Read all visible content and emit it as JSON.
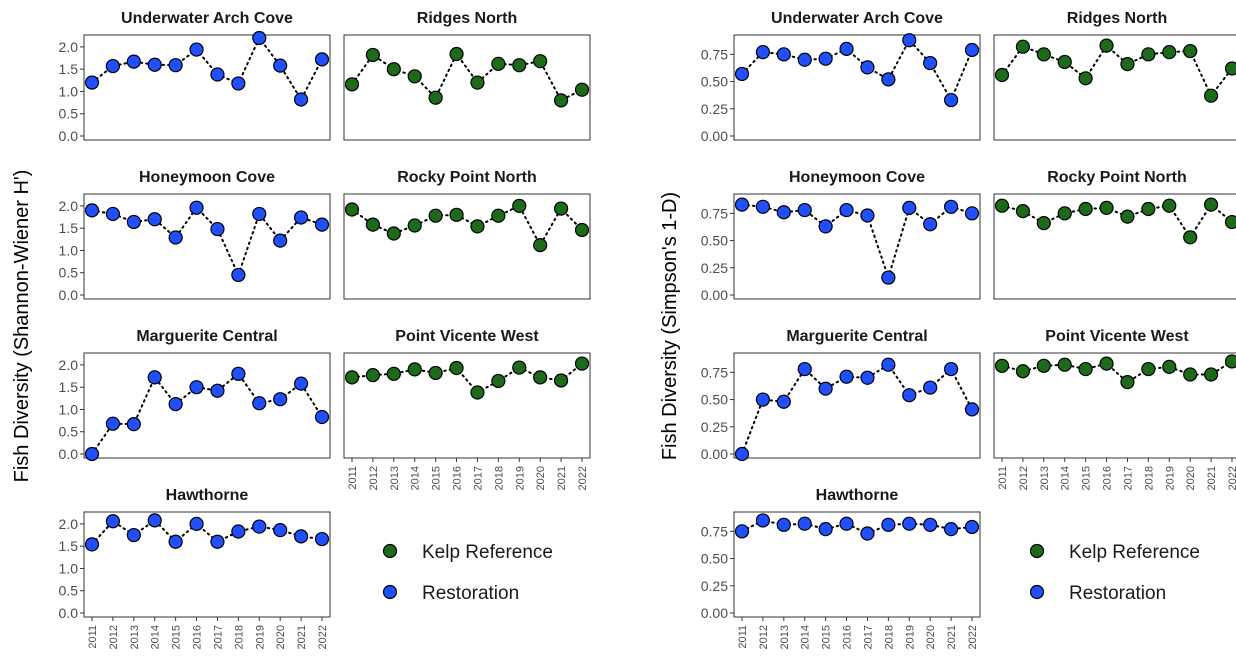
{
  "chart_data": [
    {
      "type": "scatter",
      "ylabel": "Fish Diversity (Shannon-Wiener H')",
      "ylim": [
        0,
        2.2
      ],
      "yticks": [
        "0.0",
        "0.5",
        "1.0",
        "1.5",
        "2.0"
      ],
      "ytick_values": [
        0,
        0.5,
        1.0,
        1.5,
        2.0
      ],
      "x": [
        "2011",
        "2012",
        "2013",
        "2014",
        "2015",
        "2016",
        "2017",
        "2018",
        "2019",
        "2020",
        "2021",
        "2022"
      ],
      "legend": [
        {
          "name": "Kelp Reference",
          "color": "#1b6b1b"
        },
        {
          "name": "Restoration",
          "color": "#1f4fff"
        }
      ],
      "panels": [
        {
          "title": "Underwater Arch Cove",
          "group": "Restoration",
          "values": [
            1.2,
            1.57,
            1.67,
            1.6,
            1.59,
            1.94,
            1.38,
            1.18,
            2.2,
            1.58,
            0.82,
            1.72
          ]
        },
        {
          "title": "Ridges North",
          "group": "Kelp Reference",
          "values": [
            1.16,
            1.82,
            1.5,
            1.34,
            0.86,
            1.84,
            1.2,
            1.62,
            1.59,
            1.68,
            0.8,
            1.04
          ]
        },
        {
          "title": "Honeymoon Cove",
          "group": "Restoration",
          "values": [
            1.9,
            1.82,
            1.64,
            1.7,
            1.29,
            1.96,
            1.48,
            0.45,
            1.82,
            1.22,
            1.74,
            1.58
          ]
        },
        {
          "title": "Rocky Point North",
          "group": "Kelp Reference",
          "values": [
            1.92,
            1.58,
            1.38,
            1.56,
            1.78,
            1.8,
            1.54,
            1.78,
            2.0,
            1.12,
            1.94,
            1.46
          ]
        },
        {
          "title": "Marguerite Central",
          "group": "Restoration",
          "values": [
            0.0,
            0.68,
            0.67,
            1.72,
            1.12,
            1.5,
            1.42,
            1.8,
            1.14,
            1.23,
            1.58,
            0.83
          ]
        },
        {
          "title": "Point Vicente West",
          "group": "Kelp Reference",
          "values": [
            1.72,
            1.77,
            1.8,
            1.9,
            1.82,
            1.93,
            1.38,
            1.64,
            1.94,
            1.72,
            1.65,
            2.03
          ]
        },
        {
          "title": "Hawthorne",
          "group": "Restoration",
          "values": [
            1.54,
            2.06,
            1.75,
            2.08,
            1.6,
            2.0,
            1.6,
            1.83,
            1.94,
            1.86,
            1.72,
            1.66
          ]
        }
      ]
    },
    {
      "type": "scatter",
      "ylabel": "Fish Diversity (Simpson's 1-D)",
      "ylim": [
        0,
        0.9
      ],
      "yticks": [
        "0.00",
        "0.25",
        "0.50",
        "0.75"
      ],
      "ytick_values": [
        0,
        0.25,
        0.5,
        0.75
      ],
      "x": [
        "2011",
        "2012",
        "2013",
        "2014",
        "2015",
        "2016",
        "2017",
        "2018",
        "2019",
        "2020",
        "2021",
        "2022"
      ],
      "legend": [
        {
          "name": "Kelp Reference",
          "color": "#1b6b1b"
        },
        {
          "name": "Restoration",
          "color": "#1f4fff"
        }
      ],
      "panels": [
        {
          "title": "Underwater Arch Cove",
          "group": "Restoration",
          "values": [
            0.57,
            0.77,
            0.75,
            0.7,
            0.71,
            0.8,
            0.63,
            0.52,
            0.88,
            0.67,
            0.33,
            0.79
          ]
        },
        {
          "title": "Ridges North",
          "group": "Kelp Reference",
          "values": [
            0.56,
            0.82,
            0.75,
            0.68,
            0.53,
            0.83,
            0.66,
            0.75,
            0.77,
            0.78,
            0.37,
            0.62
          ]
        },
        {
          "title": "Honeymoon Cove",
          "group": "Restoration",
          "values": [
            0.83,
            0.81,
            0.76,
            0.78,
            0.63,
            0.78,
            0.73,
            0.16,
            0.8,
            0.65,
            0.81,
            0.75
          ]
        },
        {
          "title": "Rocky Point North",
          "group": "Kelp Reference",
          "values": [
            0.82,
            0.77,
            0.66,
            0.75,
            0.79,
            0.8,
            0.72,
            0.79,
            0.82,
            0.53,
            0.83,
            0.67
          ]
        },
        {
          "title": "Marguerite Central",
          "group": "Restoration",
          "values": [
            0.0,
            0.5,
            0.48,
            0.78,
            0.6,
            0.71,
            0.7,
            0.82,
            0.54,
            0.61,
            0.78,
            0.41
          ]
        },
        {
          "title": "Point Vicente West",
          "group": "Kelp Reference",
          "values": [
            0.81,
            0.76,
            0.81,
            0.82,
            0.78,
            0.83,
            0.66,
            0.78,
            0.8,
            0.73,
            0.73,
            0.85
          ]
        },
        {
          "title": "Hawthorne",
          "group": "Restoration",
          "values": [
            0.75,
            0.85,
            0.81,
            0.82,
            0.77,
            0.82,
            0.73,
            0.81,
            0.82,
            0.81,
            0.77,
            0.79
          ]
        }
      ]
    }
  ]
}
